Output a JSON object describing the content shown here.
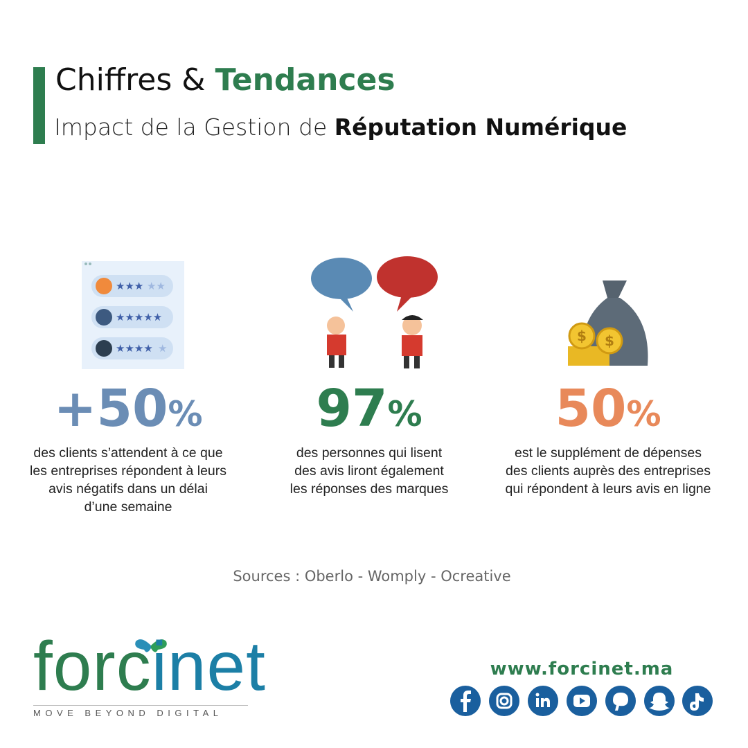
{
  "header": {
    "title_part1": "Chiffres &",
    "title_part2": "Tendances",
    "subtitle_part1": "Impact de la Gestion de",
    "subtitle_part2": "Réputation Numérique"
  },
  "stats": [
    {
      "figure": "+50",
      "unit": "%",
      "lines": [
        "des clients s’attendent à ce que",
        "les entreprises répondent à leurs",
        "avis négatifs dans un délai",
        "d’une semaine"
      ]
    },
    {
      "figure": "97",
      "unit": "%",
      "lines": [
        "des personnes qui lisent",
        "des avis liront également",
        "les réponses des marques"
      ]
    },
    {
      "figure": "50",
      "unit": "%",
      "lines": [
        "est le supplément de dépenses",
        "des clients auprès des entreprises",
        "qui répondent à leurs avis en ligne"
      ]
    }
  ],
  "sources": "Sources : Oberlo - Womply - Ocreative",
  "logo": {
    "name_part1": "forc",
    "name_part2": "inet",
    "tagline": "MOVE BEYOND DIGITAL"
  },
  "website": "www.forcinet.ma"
}
